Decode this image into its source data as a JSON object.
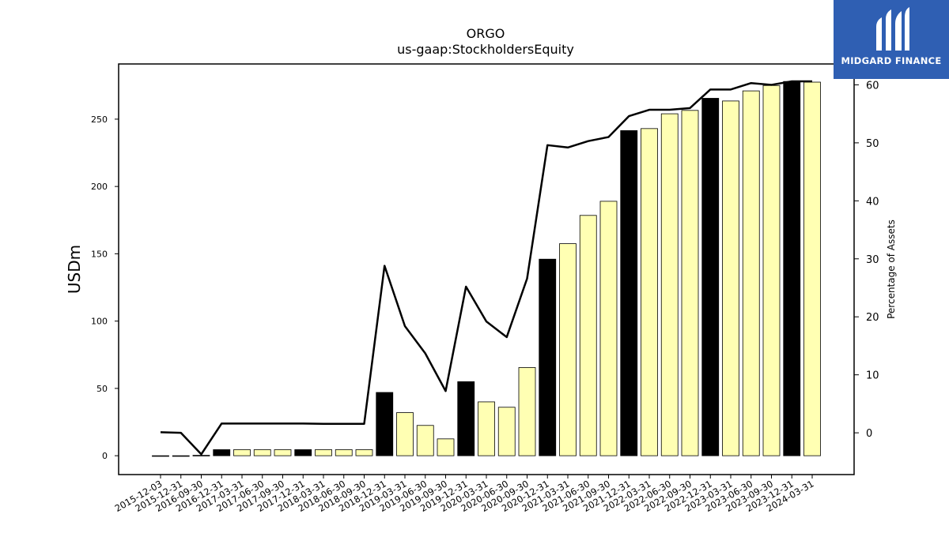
{
  "brand": {
    "name": "MIDGARD FINANCE",
    "bg_color": "#2f5fb3"
  },
  "chart_data": {
    "type": "bar",
    "title": "ORGO",
    "subtitle": "us-gaap:StockholdersEquity",
    "ylabel": "USDm",
    "y2label": "Percentage of Assets",
    "ylim": [
      -14,
      291
    ],
    "y2lim": [
      -7.2,
      63.6
    ],
    "yticks": [
      0,
      50,
      100,
      150,
      200,
      250
    ],
    "y2ticks": [
      0,
      10,
      20,
      30,
      40,
      50,
      60
    ],
    "grid": false,
    "colors": {
      "annual_bar": "#000000",
      "quarter_bar": "#ffffb3",
      "line": "#000000"
    },
    "categories": [
      "2015-12-03",
      "2015-12-31",
      "2016-09-30",
      "2016-12-31",
      "2017-03-31",
      "2017-06-30",
      "2017-09-30",
      "2017-12-31",
      "2018-03-31",
      "2018-06-30",
      "2018-09-30",
      "2018-12-31",
      "2019-03-31",
      "2019-06-30",
      "2019-09-30",
      "2019-12-31",
      "2020-03-31",
      "2020-06-30",
      "2020-09-30",
      "2020-12-31",
      "2021-03-31",
      "2021-06-30",
      "2021-09-30",
      "2021-12-31",
      "2022-03-31",
      "2022-06-30",
      "2022-09-30",
      "2022-12-31",
      "2023-03-31",
      "2023-06-30",
      "2023-09-30",
      "2023-12-31",
      "2024-03-31"
    ],
    "series": [
      {
        "type": "bar",
        "values": [
          0,
          0,
          0.3,
          4.5,
          4.5,
          4.5,
          4.5,
          4.5,
          4.5,
          4.5,
          4.5,
          47,
          32,
          22.5,
          12.5,
          55,
          40,
          36,
          65.5,
          146,
          157.5,
          178.5,
          189,
          241.5,
          243,
          254,
          256.5,
          265.5,
          263.5,
          271,
          275,
          278,
          277.5
        ],
        "is_annual": [
          false,
          false,
          false,
          true,
          false,
          false,
          false,
          true,
          false,
          false,
          false,
          true,
          false,
          false,
          false,
          true,
          false,
          false,
          false,
          true,
          false,
          false,
          false,
          true,
          false,
          false,
          false,
          true,
          false,
          false,
          false,
          true,
          false
        ]
      },
      {
        "type": "line",
        "axis": "right",
        "values": [
          0.1,
          0,
          -3.7,
          1.6,
          1.6,
          1.6,
          1.6,
          1.6,
          1.55,
          1.55,
          1.55,
          28.8,
          18.4,
          13.7,
          7.2,
          25.2,
          19.2,
          16.5,
          26.6,
          49.6,
          49.2,
          50.3,
          51,
          54.6,
          55.7,
          55.7,
          56,
          59.2,
          59.2,
          60.3,
          60,
          60.6,
          60.6
        ]
      }
    ]
  }
}
